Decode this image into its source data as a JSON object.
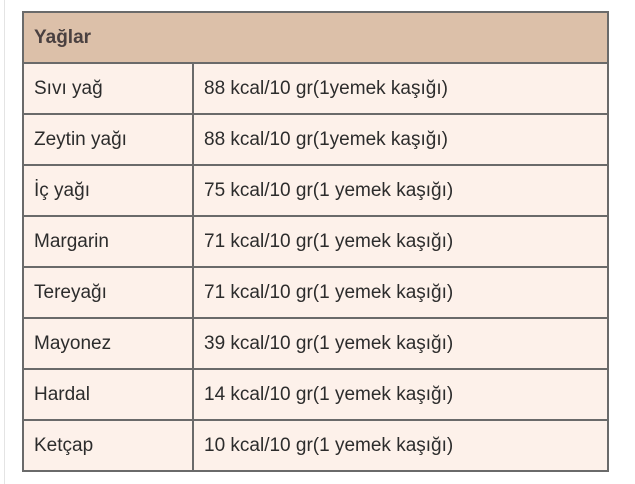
{
  "table": {
    "header": "Yağlar",
    "rows": [
      {
        "name": "Sıvı yağ",
        "value": "88 kcal/10 gr(1yemek kaşığı)"
      },
      {
        "name": "Zeytin yağı",
        "value": "88 kcal/10 gr(1yemek kaşığı)"
      },
      {
        "name": "İç yağı",
        "value": "75 kcal/10 gr(1 yemek kaşığı)"
      },
      {
        "name": "Margarin",
        "value": "71 kcal/10 gr(1 yemek kaşığı)"
      },
      {
        "name": "Tereyağı",
        "value": "71 kcal/10 gr(1 yemek kaşığı)"
      },
      {
        "name": "Mayonez",
        "value": "39 kcal/10 gr(1 yemek kaşığı)"
      },
      {
        "name": "Hardal",
        "value": "14 kcal/10 gr(1 yemek kaşığı)"
      },
      {
        "name": "Ketçap",
        "value": "10 kcal/10 gr(1 yemek kaşığı)"
      }
    ]
  },
  "colors": {
    "header_bg": "#dcc0a9",
    "cell_bg": "#fdf1ea",
    "border": "#6a6a6a"
  }
}
